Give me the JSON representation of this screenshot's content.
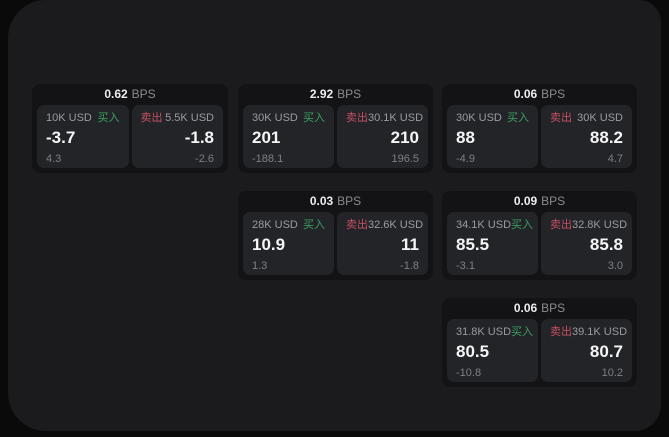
{
  "labels": {
    "bps": "BPS",
    "buy": "买入",
    "sell": "卖出"
  },
  "colors": {
    "background": "#0a0a0b",
    "panel": "#1b1b1d",
    "card": "#131315",
    "pane": "#232428",
    "buy_accent": "#3da061",
    "sell_accent": "#c64f63",
    "text_primary": "#f5f5f6",
    "text_secondary": "#9b9ba0",
    "text_dim": "#7f7f84"
  },
  "cards": [
    {
      "bps": "0.62",
      "buy": {
        "notional": "10K USD",
        "price": "-3.7",
        "delta": "4.3"
      },
      "sell": {
        "notional": "5.5K USD",
        "price": "-1.8",
        "delta": "-2.6"
      }
    },
    {
      "bps": "2.92",
      "buy": {
        "notional": "30K USD",
        "price": "201",
        "delta": "-188.1"
      },
      "sell": {
        "notional": "30.1K USD",
        "price": "210",
        "delta": "196.5"
      }
    },
    {
      "bps": "0.06",
      "buy": {
        "notional": "30K USD",
        "price": "88",
        "delta": "-4.9"
      },
      "sell": {
        "notional": "30K USD",
        "price": "88.2",
        "delta": "4.7"
      }
    },
    {
      "bps": "0.03",
      "buy": {
        "notional": "28K USD",
        "price": "10.9",
        "delta": "1.3"
      },
      "sell": {
        "notional": "32.6K USD",
        "price": "11",
        "delta": "-1.8"
      }
    },
    {
      "bps": "0.09",
      "buy": {
        "notional": "34.1K USD",
        "price": "85.5",
        "delta": "-3.1"
      },
      "sell": {
        "notional": "32.8K USD",
        "price": "85.8",
        "delta": "3.0"
      }
    },
    {
      "bps": "0.06",
      "buy": {
        "notional": "31.8K USD",
        "price": "80.5",
        "delta": "-10.8"
      },
      "sell": {
        "notional": "39.1K USD",
        "price": "80.7",
        "delta": "10.2"
      }
    }
  ]
}
